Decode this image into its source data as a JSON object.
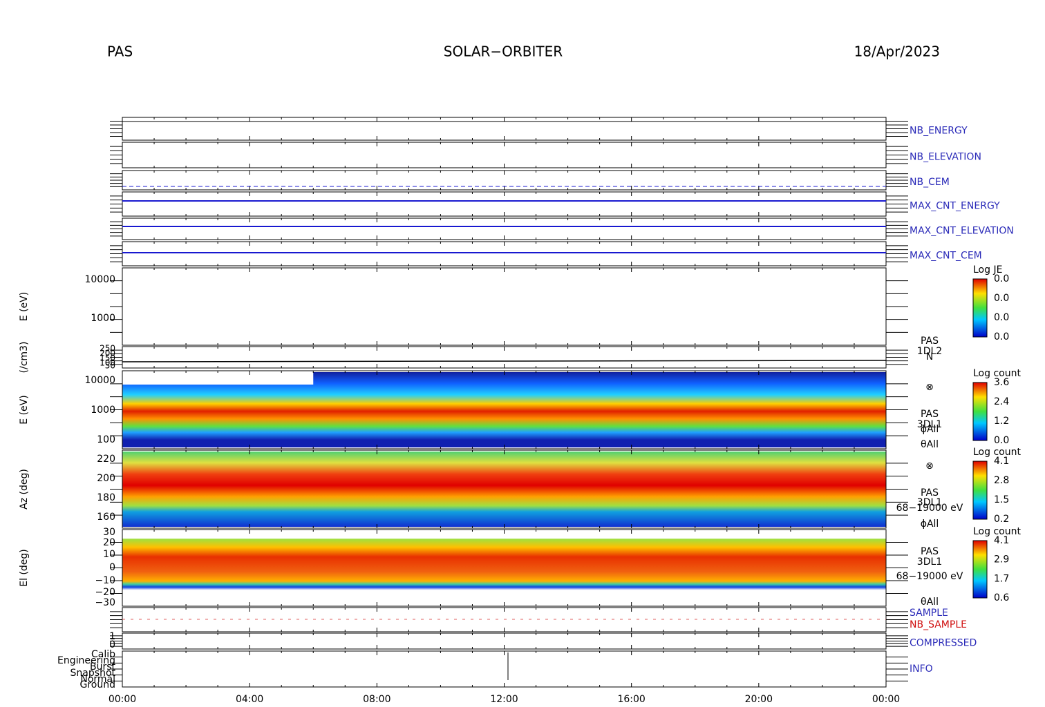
{
  "header": {
    "left": "PAS",
    "center": "SOLAR−ORBITER",
    "right": "18/Apr/2023"
  },
  "x_axis": {
    "ticks": [
      "00:00",
      "04:00",
      "08:00",
      "12:00",
      "16:00",
      "20:00",
      "00:00"
    ]
  },
  "panels": [
    {
      "label": "NB_ENERGY"
    },
    {
      "label": "NB_ELEVATION"
    },
    {
      "label": "NB_CEM"
    },
    {
      "label": "MAX_CNT_ENERGY"
    },
    {
      "label": "MAX_CNT_ELEVATION"
    },
    {
      "label": "MAX_CNT_CEM"
    },
    {
      "ylabel": "E (eV)",
      "yticks": [
        "10000",
        "1000"
      ],
      "colorbar": {
        "title": "Log JE",
        "ticks": [
          "0.0",
          "0.0",
          "0.0",
          "0.0"
        ]
      }
    },
    {
      "ylabel": "(/cm3)",
      "yticks": [
        "250",
        "200",
        "150",
        "100",
        "50"
      ],
      "side": [
        "PAS",
        "1DL2",
        "N"
      ]
    },
    {
      "ylabel": "E (eV)",
      "yticks": [
        "10000",
        "1000",
        "100"
      ],
      "side": [
        "⊗",
        "PAS",
        "3DL1",
        "ϕAll",
        "θAll"
      ],
      "colorbar": {
        "title": "Log count",
        "ticks": [
          "3.6",
          "2.4",
          "1.2",
          "0.0"
        ]
      }
    },
    {
      "ylabel": "Az (deg)",
      "yticks": [
        "220",
        "200",
        "180",
        "160"
      ],
      "side": [
        "⊗",
        "PAS",
        "3DL1",
        "68−19000 eV",
        "ϕAll"
      ],
      "colorbar": {
        "title": "Log count",
        "ticks": [
          "4.1",
          "2.8",
          "1.5",
          "0.2"
        ]
      }
    },
    {
      "ylabel": "El (deg)",
      "yticks": [
        "30",
        "20",
        "10",
        "0",
        "−10",
        "−20",
        "−30"
      ],
      "side": [
        "PAS",
        "3DL1",
        "68−19000 eV",
        "θAll"
      ],
      "colorbar": {
        "title": "Log count",
        "ticks": [
          "4.1",
          "2.9",
          "1.7",
          "0.6"
        ]
      }
    },
    {
      "labels": [
        "SAMPLE",
        "NB_SAMPLE"
      ]
    },
    {
      "label": "COMPRESSED",
      "yticks": [
        "1",
        "0"
      ]
    },
    {
      "label": "INFO",
      "yticks": [
        "Calib",
        "Engineering",
        "Burst",
        "Snapshot",
        "Normal",
        "Ground"
      ]
    }
  ]
}
